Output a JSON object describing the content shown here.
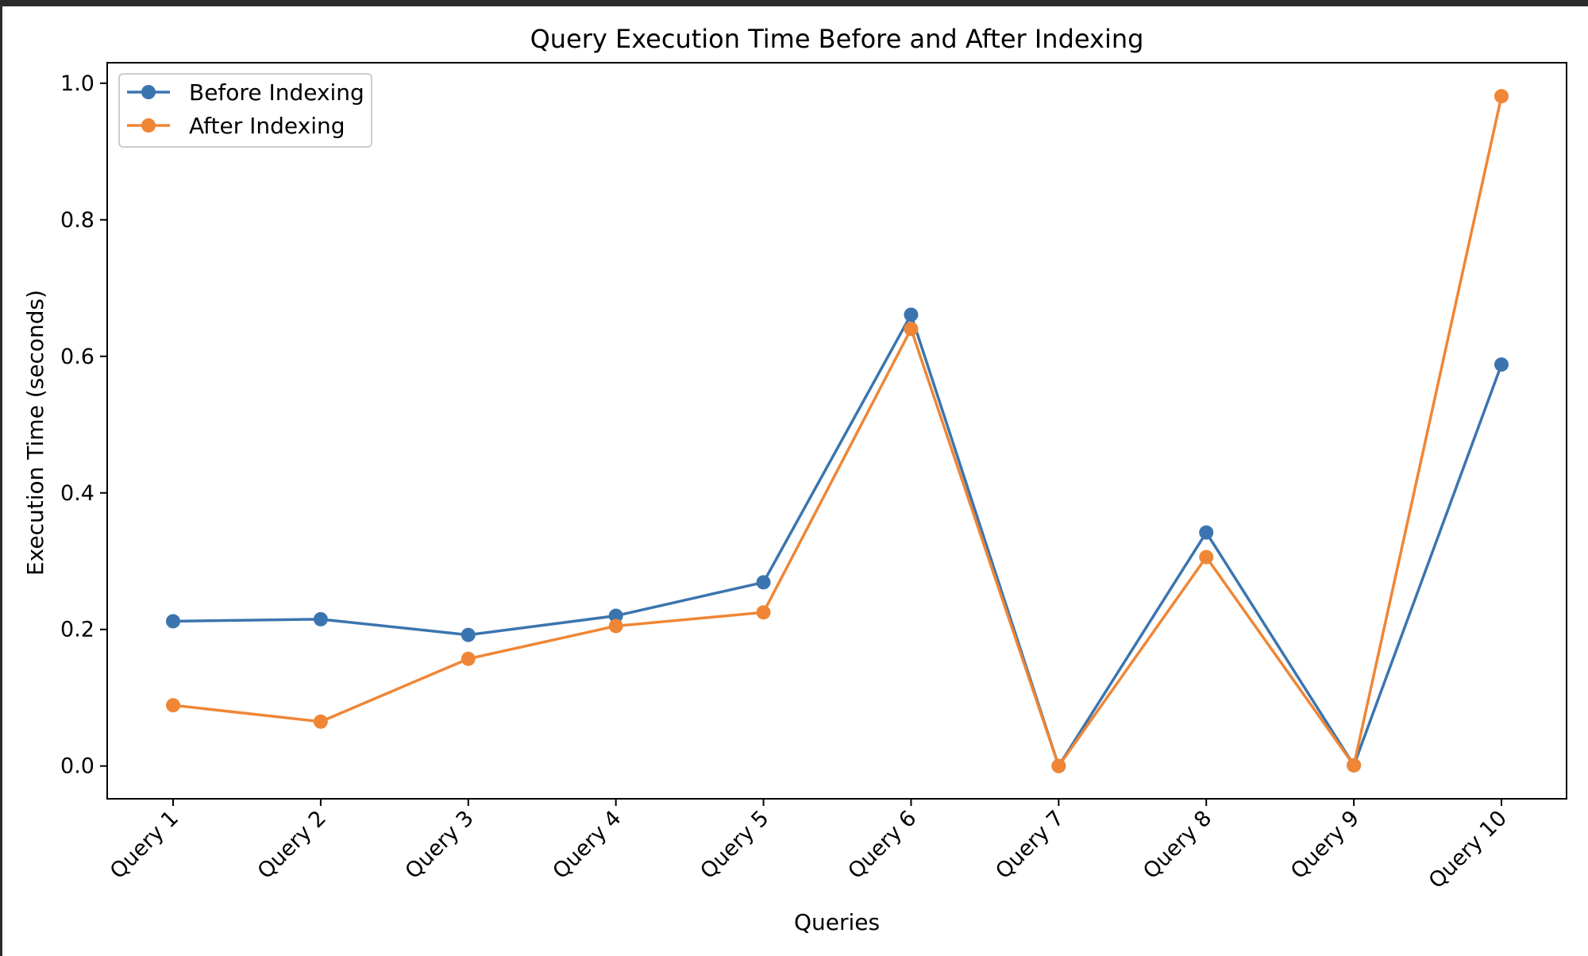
{
  "chart_data": {
    "type": "line",
    "title": "Query Execution Time Before and After Indexing",
    "xlabel": "Queries",
    "ylabel": "Execution Time (seconds)",
    "categories": [
      "Query 1",
      "Query 2",
      "Query 3",
      "Query 4",
      "Query 5",
      "Query 6",
      "Query 7",
      "Query 8",
      "Query 9",
      "Query 10"
    ],
    "series": [
      {
        "name": "Before Indexing",
        "color": "#3b75af",
        "values": [
          0.212,
          0.215,
          0.192,
          0.22,
          0.269,
          0.661,
          0.0,
          0.342,
          0.001,
          0.588
        ]
      },
      {
        "name": "After Indexing",
        "color": "#ef8636",
        "values": [
          0.089,
          0.065,
          0.157,
          0.205,
          0.225,
          0.64,
          0.0,
          0.306,
          0.001,
          0.981
        ]
      }
    ],
    "ylim": [
      -0.048,
      1.03
    ],
    "yticks": [
      "0.0",
      "0.2",
      "0.4",
      "0.6",
      "0.8",
      "1.0"
    ],
    "ytick_values": [
      0.0,
      0.2,
      0.4,
      0.6,
      0.8,
      1.0
    ],
    "grid": false,
    "legend_position": "top-left",
    "marker": "circle"
  }
}
